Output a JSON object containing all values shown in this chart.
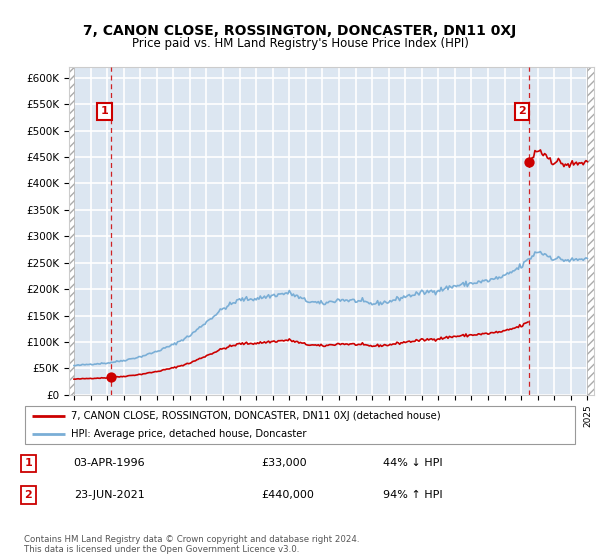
{
  "title": "7, CANON CLOSE, ROSSINGTON, DONCASTER, DN11 0XJ",
  "subtitle": "Price paid vs. HM Land Registry's House Price Index (HPI)",
  "ylim": [
    0,
    620000
  ],
  "yticks": [
    0,
    50000,
    100000,
    150000,
    200000,
    250000,
    300000,
    350000,
    400000,
    450000,
    500000,
    550000,
    600000
  ],
  "ytick_labels": [
    "£0",
    "£50K",
    "£100K",
    "£150K",
    "£200K",
    "£250K",
    "£300K",
    "£350K",
    "£400K",
    "£450K",
    "£500K",
    "£550K",
    "£600K"
  ],
  "xlim_start": 1993.7,
  "xlim_end": 2025.4,
  "hpi_monthly_years": [],
  "hpi_monthly_values": [],
  "sale_years": [
    1996.25,
    2021.47
  ],
  "sale_prices": [
    33000,
    440000
  ],
  "sale_labels": [
    "1",
    "2"
  ],
  "sale_color": "#cc0000",
  "hpi_color": "#7aaed6",
  "plot_bg_color": "#dce6f1",
  "grid_color": "#ffffff",
  "hatch_edge_color": "#aaaaaa",
  "legend_label_red": "7, CANON CLOSE, ROSSINGTON, DONCASTER, DN11 0XJ (detached house)",
  "legend_label_blue": "HPI: Average price, detached house, Doncaster",
  "annotation1_label": "1",
  "annotation1_date": "03-APR-1996",
  "annotation1_price": "£33,000",
  "annotation1_hpi": "44% ↓ HPI",
  "annotation2_label": "2",
  "annotation2_date": "23-JUN-2021",
  "annotation2_price": "£440,000",
  "annotation2_hpi": "94% ↑ HPI",
  "footer": "Contains HM Land Registry data © Crown copyright and database right 2024.\nThis data is licensed under the Open Government Licence v3.0."
}
